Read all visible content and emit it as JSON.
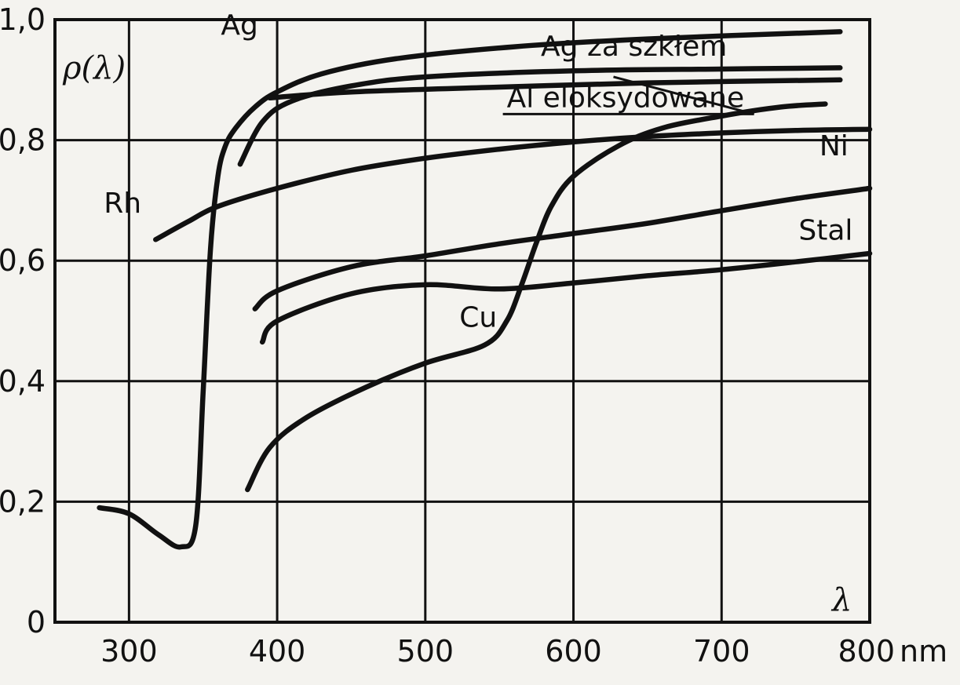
{
  "chart_data": {
    "type": "line",
    "xlabel": "λ",
    "x_unit": "nm",
    "ylabel": "ρ(λ)",
    "xlim": [
      250,
      800
    ],
    "ylim": [
      0,
      1.0
    ],
    "grid": true,
    "xticks": [
      300,
      400,
      500,
      600,
      700,
      800
    ],
    "xtick_labels": [
      "300",
      "400",
      "500",
      "600",
      "700",
      "800"
    ],
    "yticks": [
      0,
      0.2,
      0.4,
      0.6,
      0.8,
      1.0
    ],
    "ytick_labels": [
      "0",
      "0,2",
      "0,4",
      "0,6",
      "0,8",
      "1,0"
    ],
    "series": [
      {
        "name": "Ag",
        "label_at": [
          362,
          0.975
        ],
        "x": [
          280,
          300,
          320,
          335,
          345,
          350,
          355,
          360,
          365,
          372,
          385,
          400,
          430,
          480,
          560,
          650,
          780
        ],
        "y": [
          0.19,
          0.18,
          0.145,
          0.125,
          0.16,
          0.38,
          0.62,
          0.74,
          0.79,
          0.82,
          0.855,
          0.88,
          0.91,
          0.935,
          0.955,
          0.968,
          0.98
        ]
      },
      {
        "name": "Ag za szkłem",
        "label_at": [
          578,
          0.94
        ],
        "x": [
          375,
          390,
          410,
          450,
          500,
          600,
          700,
          780
        ],
        "y": [
          0.76,
          0.83,
          0.865,
          0.89,
          0.905,
          0.915,
          0.918,
          0.92
        ]
      },
      {
        "name": "Al eloksydowane",
        "label_at": [
          555,
          0.855
        ],
        "x": [
          395,
          450,
          550,
          650,
          780
        ],
        "y": [
          0.87,
          0.88,
          0.888,
          0.895,
          0.9
        ]
      },
      {
        "name": "Rh",
        "label_at": [
          283,
          0.68
        ],
        "x": [
          318,
          340,
          360,
          400,
          450,
          500,
          550,
          600,
          650,
          700,
          750,
          800
        ],
        "y": [
          0.635,
          0.665,
          0.69,
          0.72,
          0.75,
          0.77,
          0.785,
          0.797,
          0.806,
          0.812,
          0.816,
          0.818
        ]
      },
      {
        "name": "Ni",
        "label_at": [
          766,
          0.775
        ],
        "x": [
          385,
          400,
          450,
          500,
          550,
          600,
          650,
          700,
          750,
          800
        ],
        "y": [
          0.52,
          0.55,
          0.59,
          0.608,
          0.628,
          0.645,
          0.662,
          0.683,
          0.703,
          0.72
        ]
      },
      {
        "name": "Stal",
        "label_at": [
          752,
          0.635
        ],
        "x": [
          390,
          400,
          450,
          500,
          550,
          600,
          650,
          700,
          750,
          800
        ],
        "y": [
          0.465,
          0.5,
          0.545,
          0.56,
          0.553,
          0.563,
          0.575,
          0.585,
          0.598,
          0.612
        ]
      },
      {
        "name": "Cu",
        "label_at": [
          523,
          0.49
        ],
        "x": [
          380,
          395,
          420,
          460,
          500,
          540,
          555,
          565,
          575,
          585,
          600,
          630,
          660,
          700,
          740,
          770
        ],
        "y": [
          0.22,
          0.29,
          0.34,
          0.39,
          0.43,
          0.46,
          0.5,
          0.56,
          0.63,
          0.69,
          0.74,
          0.79,
          0.82,
          0.84,
          0.855,
          0.86
        ]
      }
    ]
  }
}
